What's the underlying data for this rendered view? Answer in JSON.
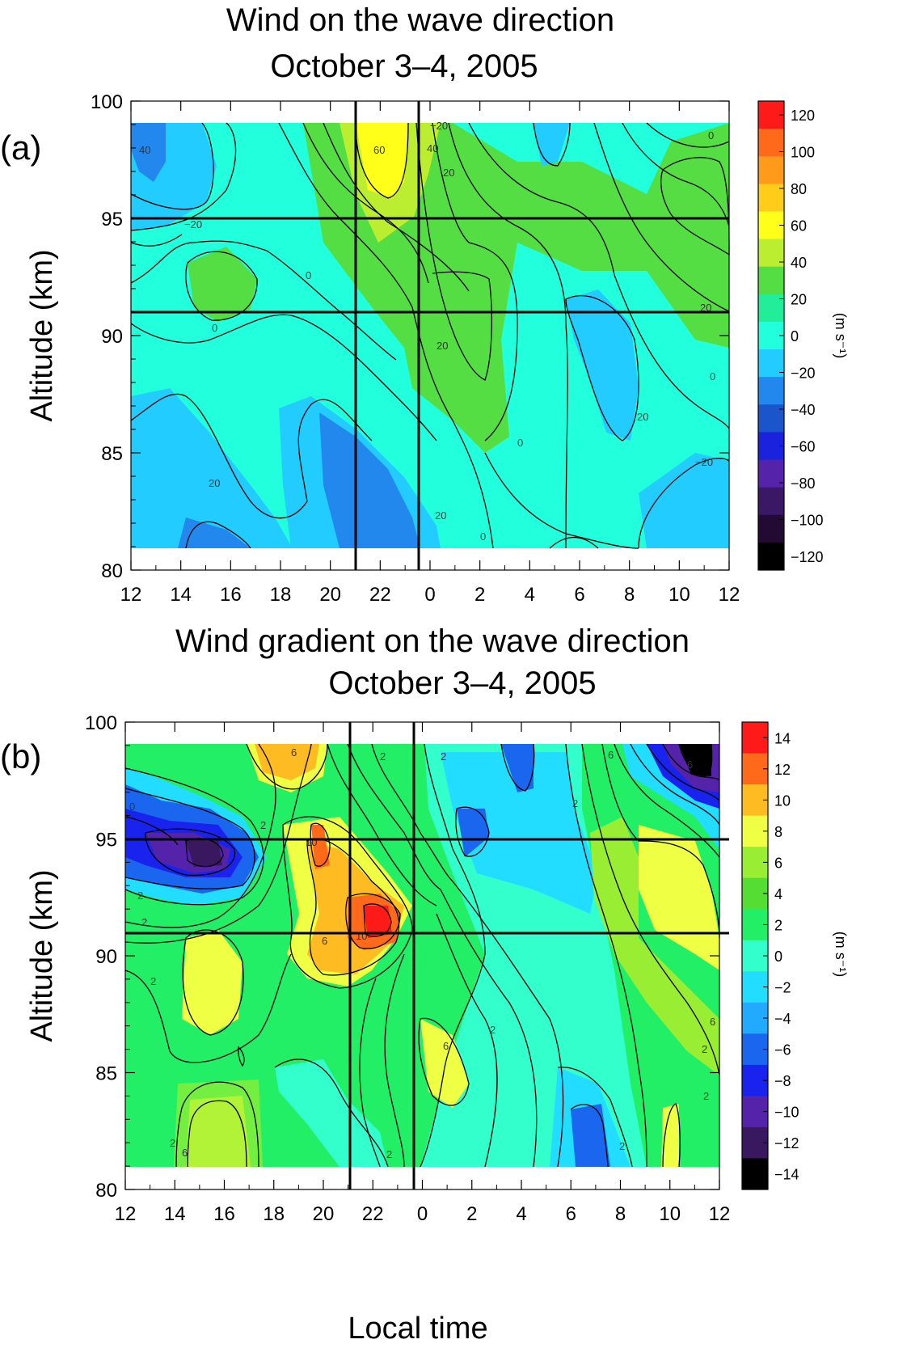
{
  "chart_data": [
    {
      "type": "heatmap",
      "panel_label": "(a)",
      "title": [
        "Wind on the wave direction",
        "October 3–4, 2005"
      ],
      "xlabel": "",
      "ylabel": "Altitude (km)",
      "x_ticks": [
        "12",
        "14",
        "16",
        "18",
        "20",
        "22",
        "0",
        "2",
        "4",
        "6",
        "8",
        "10",
        "12"
      ],
      "y_ticks": [
        "80",
        "85",
        "90",
        "95",
        "100"
      ],
      "ylim": [
        80,
        100
      ],
      "data_altitude_range": [
        81,
        99
      ],
      "colorbar_label": "(m s⁻¹)",
      "colorbar_levels": [
        "120",
        "100",
        "80",
        "60",
        "40",
        "20",
        "0",
        "−20",
        "−40",
        "−60",
        "−80",
        "−100",
        "−120"
      ],
      "colorbar_colors": [
        "#ff1a1a",
        "#ff6a1a",
        "#ff9a1a",
        "#ffcc1a",
        "#ffff1a",
        "#bbee30",
        "#55dd44",
        "#22ee99",
        "#22ffdd",
        "#22ccff",
        "#2288ee",
        "#1a55cc",
        "#1a22dd",
        "#5522aa",
        "#3a1866",
        "#220a33",
        "#000000"
      ],
      "field_colors": [
        "#22ffdd",
        "#55dd44",
        "#bbee30",
        "#ffff1a",
        "#22ccff",
        "#2288ee",
        "#1a55cc"
      ],
      "contour_labels": [
        "40",
        "−20",
        "0",
        "60",
        "40",
        "20",
        "0",
        "20",
        "0",
        "20",
        "0",
        "20",
        "0",
        "20",
        "20",
        "−20",
        "0",
        "−20"
      ],
      "reference_lines": {
        "altitude_km": [
          95,
          91
        ],
        "local_time": [
          "21.8",
          "24.0"
        ]
      }
    },
    {
      "type": "heatmap",
      "panel_label": "(b)",
      "title": [
        "Wind gradient on the wave direction",
        "October 3–4, 2005"
      ],
      "xlabel": "Local time",
      "ylabel": "Altitude (km)",
      "x_ticks": [
        "12",
        "14",
        "16",
        "18",
        "20",
        "22",
        "0",
        "2",
        "4",
        "6",
        "8",
        "10",
        "12"
      ],
      "y_ticks": [
        "80",
        "85",
        "90",
        "95",
        "100"
      ],
      "ylim": [
        80,
        100
      ],
      "data_altitude_range": [
        81,
        99
      ],
      "colorbar_label": "(m s⁻¹)",
      "colorbar_levels": [
        "14",
        "12",
        "10",
        "8",
        "6",
        "4",
        "2",
        "0",
        "−2",
        "−4",
        "−6",
        "−8",
        "−10",
        "−12",
        "−14"
      ],
      "colorbar_colors": [
        "#ff1a1a",
        "#ff6a1a",
        "#ffbb22",
        "#eeff44",
        "#99ee33",
        "#55dd33",
        "#22ee66",
        "#33ffcc",
        "#22ddff",
        "#22aaff",
        "#1a66ee",
        "#1a22ee",
        "#5522aa",
        "#3a1860",
        "#000000"
      ],
      "contour_labels": [
        "6",
        "2",
        "2",
        "6",
        "2",
        "6",
        "2",
        "10",
        "2",
        "0",
        "10",
        "6",
        "2",
        "2",
        "6",
        "2",
        "6",
        "2",
        "2",
        "6",
        "2",
        "2",
        "2"
      ],
      "reference_lines": {
        "altitude_km": [
          95,
          91
        ],
        "local_time": [
          "21.8",
          "23.8"
        ]
      }
    }
  ]
}
